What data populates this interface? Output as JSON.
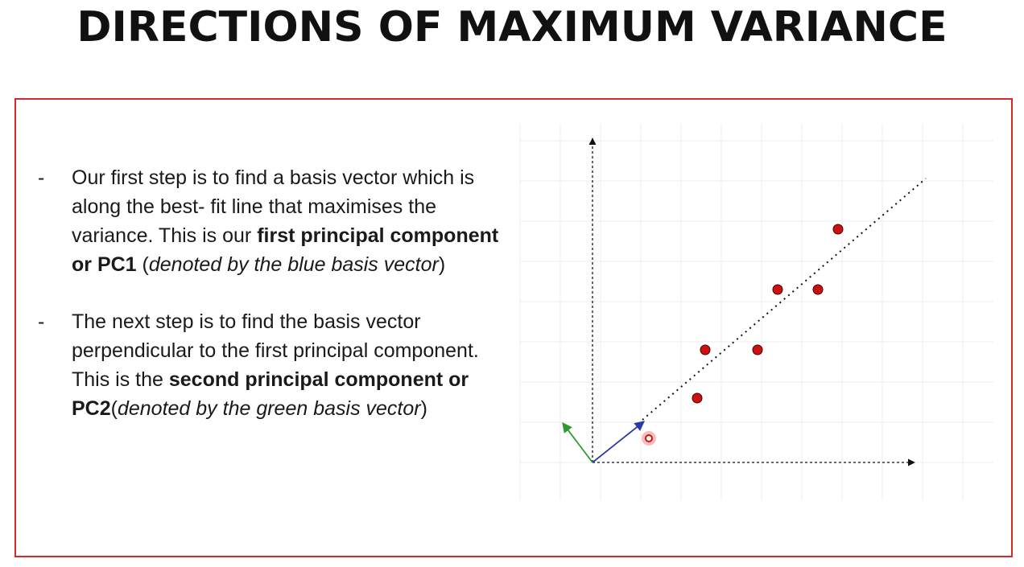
{
  "title": "DIRECTIONS OF MAXIMUM VARIANCE",
  "bullets": [
    {
      "dash": "-",
      "text1": "Our first step is to find a basis vector which is along the best- fit line that maximises the variance. This is our ",
      "bold": "first principal component or PC1",
      "text2": " (",
      "italic": "denoted by the blue basis vector",
      "text3": ")"
    },
    {
      "dash": "-",
      "text1": "The next step is to find the basis vector perpendicular to the first principal component. This is the ",
      "bold": "second principal component or PC2",
      "text2": "(",
      "italic": "denoted by the green basis vector",
      "text3": ")"
    }
  ],
  "diagram": {
    "points": [
      [
        2.6,
        1.6
      ],
      [
        2.8,
        2.8
      ],
      [
        4.1,
        2.8
      ],
      [
        4.6,
        4.3
      ],
      [
        5.6,
        4.3
      ],
      [
        6.1,
        5.8
      ]
    ],
    "cursor_point": [
      1.4,
      0.6
    ],
    "colors": {
      "point": "#cc1111",
      "pc1": "#2a3aa8",
      "pc2": "#2e9a2e",
      "axis": "#111111",
      "grid": "#eeeeee",
      "frame": "#d62828"
    }
  }
}
